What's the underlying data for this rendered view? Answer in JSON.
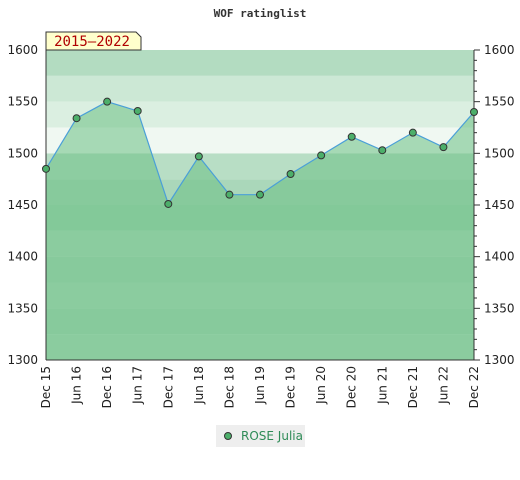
{
  "chart_data": {
    "type": "area",
    "title": "WOF ratinglist",
    "period_label": "2015–2022",
    "ylim": [
      1300,
      1600
    ],
    "y_ticks": [
      1300,
      1350,
      1400,
      1450,
      1500,
      1550,
      1600
    ],
    "categories": [
      "Dec 15",
      "Jun 16",
      "Dec 16",
      "Jun 17",
      "Dec 17",
      "Jun 18",
      "Dec 18",
      "Jun 19",
      "Dec 19",
      "Jun 20",
      "Dec 20",
      "Jun 21",
      "Dec 21",
      "Jun 22",
      "Dec 22"
    ],
    "series": [
      {
        "name": "ROSE Julia",
        "values": [
          1485,
          1534,
          1550,
          1541,
          1451,
          1497,
          1460,
          1460,
          1480,
          1498,
          1516,
          1503,
          1520,
          1506,
          1540
        ]
      }
    ],
    "grid": true,
    "legend_position": "bottom-center",
    "colors": {
      "line": "#4a9fd8",
      "marker": "#4caf6a",
      "fill": "#6abf83",
      "band_light": "#f0f8f2",
      "badge_bg": "#ffffcc"
    }
  }
}
